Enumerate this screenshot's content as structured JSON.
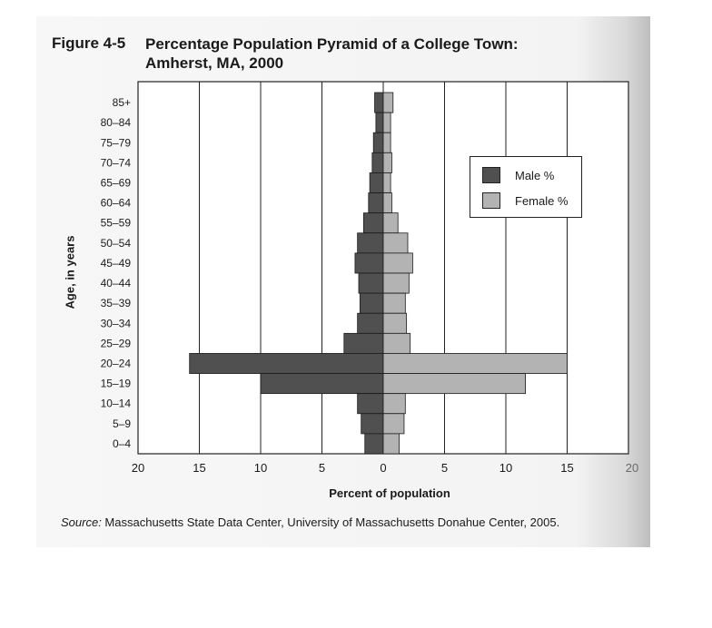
{
  "header": {
    "figure_label": "Figure 4-5",
    "title_line1": "Percentage Population Pyramid of a College Town:",
    "title_line2": "Amherst, MA, 2000"
  },
  "source": {
    "prefix": "Source:",
    "text": " Massachusetts State Data Center, University of Massachusetts Donahue Center, 2005."
  },
  "legend": {
    "male": "Male %",
    "female": "Female %"
  },
  "colors": {
    "male": "#505050",
    "female": "#b3b3b3",
    "grid": "#222222"
  },
  "chart_data": {
    "type": "bar",
    "orientation": "horizontal",
    "xlabel": "Percent of population",
    "ylabel": "Age, in years",
    "xlim": [
      -20,
      20
    ],
    "x_ticks": [
      -20,
      -15,
      -10,
      -5,
      0,
      5,
      10,
      15,
      20
    ],
    "x_tick_labels": [
      "20",
      "15",
      "10",
      "5",
      "0",
      "5",
      "10",
      "15",
      "20"
    ],
    "grid": true,
    "legend_position": "top-right",
    "categories": [
      "85+",
      "80-84",
      "75-79",
      "70-74",
      "65-69",
      "60-64",
      "55-59",
      "50-54",
      "45-49",
      "40-44",
      "35-39",
      "30-34",
      "25-29",
      "20-24",
      "15-19",
      "10-14",
      "5-9",
      "0-4"
    ],
    "category_labels": [
      "85+",
      "80–84",
      "75–79",
      "70–74",
      "65–69",
      "60–64",
      "55–59",
      "50–54",
      "45–49",
      "40–44",
      "35–39",
      "30–34",
      "25–29",
      "20–24",
      "15–19",
      "10–14",
      "5–9",
      "0–4"
    ],
    "series": [
      {
        "name": "Male %",
        "values": [
          0.7,
          0.6,
          0.8,
          0.9,
          1.1,
          1.2,
          1.6,
          2.1,
          2.3,
          2.0,
          1.9,
          2.1,
          3.2,
          15.8,
          10.0,
          2.1,
          1.8,
          1.5
        ]
      },
      {
        "name": "Female %",
        "values": [
          0.8,
          0.6,
          0.6,
          0.7,
          0.6,
          0.7,
          1.2,
          2.0,
          2.4,
          2.1,
          1.8,
          1.9,
          2.2,
          15.0,
          11.6,
          1.8,
          1.7,
          1.3
        ]
      }
    ]
  }
}
